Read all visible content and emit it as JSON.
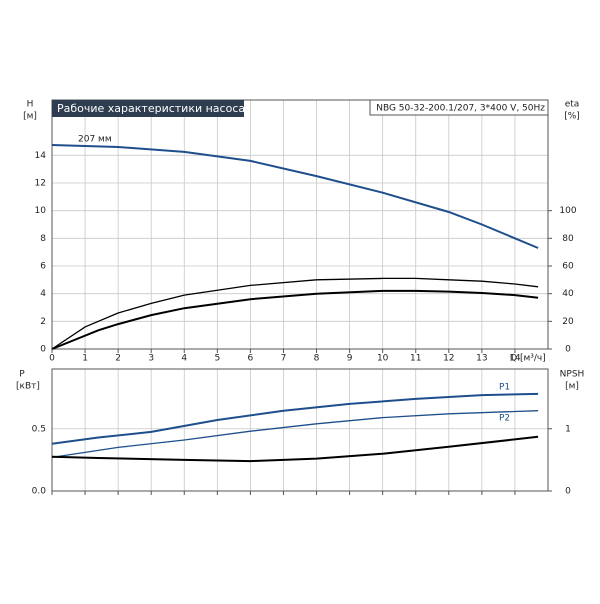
{
  "chart_data": [
    {
      "type": "line",
      "title": "Рабочие характеристики насоса",
      "subtitle": "NBG 50-32-200.1/207, 3*400 V, 50Hz",
      "annotation": "207 мм",
      "xlabel": "Q [м³/ч]",
      "ylabel": "H",
      "yunit": "[м]",
      "y2label": "eta",
      "y2unit": "[%]",
      "xlim": [
        0,
        15
      ],
      "xticks": [
        0,
        1,
        2,
        3,
        4,
        5,
        6,
        7,
        8,
        9,
        10,
        11,
        12,
        13,
        14
      ],
      "ylim": [
        0,
        18
      ],
      "yticks": [
        0,
        2,
        4,
        6,
        8,
        10,
        12,
        14
      ],
      "y2lim": [
        0,
        180
      ],
      "y2ticks": [
        0,
        20,
        40,
        60,
        80,
        100
      ],
      "grid": true,
      "xtick_labels": true,
      "series": [
        {
          "color": "#1f4e8c",
          "x": [
            0,
            2,
            4,
            6,
            8,
            10,
            12,
            13,
            14,
            14.7
          ],
          "values": [
            14.75,
            14.6,
            14.25,
            13.6,
            12.5,
            11.3,
            9.9,
            9.0,
            8.0,
            7.3
          ]
        },
        {
          "color": "#000000",
          "axis": "y2",
          "x": [
            0,
            1,
            2,
            3,
            4,
            6,
            8,
            10,
            11,
            12,
            13,
            14,
            14.7
          ],
          "values": [
            0,
            16,
            26,
            33,
            39,
            46,
            50,
            51,
            51,
            50,
            49,
            47,
            45
          ]
        },
        {
          "color": "#000000",
          "axis": "y2",
          "x": [
            0,
            1.4,
            2,
            3,
            4,
            6,
            8,
            10,
            11,
            12,
            13,
            14,
            14.7
          ],
          "values": [
            0,
            13.5,
            18,
            24.5,
            29.5,
            36,
            40,
            42,
            42,
            41.5,
            40.5,
            39,
            37
          ]
        }
      ]
    },
    {
      "type": "line",
      "ylabel": "P",
      "yunit": "[кВт]",
      "y2label": "NPSH",
      "y2unit": "[м]",
      "xlim": [
        0,
        15
      ],
      "xticks": [
        0,
        1,
        2,
        3,
        4,
        5,
        6,
        7,
        8,
        9,
        10,
        11,
        12,
        13,
        14
      ],
      "ylim": [
        0,
        0.98
      ],
      "yticks": [
        {
          "value": 0,
          "label": "0.0"
        },
        0.5
      ],
      "y2lim": [
        0,
        1.96
      ],
      "y2ticks": [
        0,
        1
      ],
      "grid": true,
      "xtick_labels": false,
      "series": [
        {
          "name": "P1",
          "color": "#1f4e8c",
          "x": [
            0,
            1.4,
            3,
            5,
            7,
            9,
            11,
            13,
            14.7
          ],
          "values": [
            0.38,
            0.43,
            0.475,
            0.57,
            0.645,
            0.7,
            0.74,
            0.77,
            0.78
          ]
        },
        {
          "name": "P2",
          "color": "#1f4e8c",
          "x": [
            0,
            2,
            4,
            6,
            8,
            10,
            12,
            14.7
          ],
          "values": [
            0.27,
            0.35,
            0.41,
            0.48,
            0.54,
            0.59,
            0.62,
            0.645
          ]
        },
        {
          "color": "#000000",
          "axis": "y2",
          "x": [
            0,
            1.4,
            4,
            6,
            8,
            10,
            12,
            14.7
          ],
          "values": [
            0.55,
            0.53,
            0.5,
            0.48,
            0.52,
            0.6,
            0.71,
            0.87
          ]
        }
      ]
    }
  ]
}
